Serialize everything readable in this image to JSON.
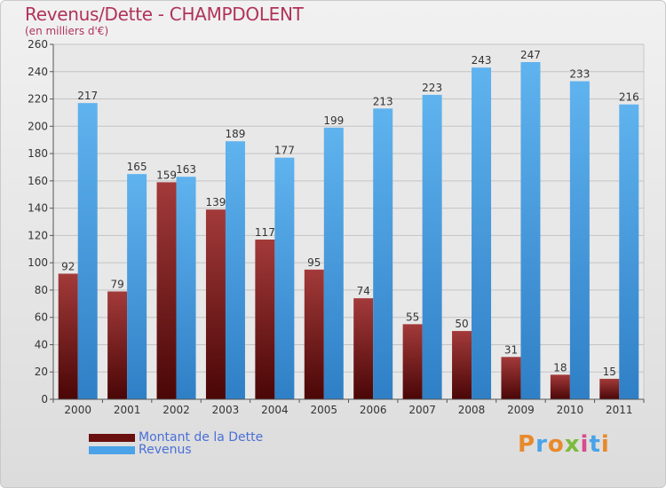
{
  "chart_data": {
    "type": "bar",
    "title": "Revenus/Dette - CHAMPDOLENT",
    "subtitle": "(en milliers d'€)",
    "categories": [
      "2000",
      "2001",
      "2002",
      "2003",
      "2004",
      "2005",
      "2006",
      "2007",
      "2008",
      "2009",
      "2010",
      "2011"
    ],
    "series": [
      {
        "name": "Montant de la Dette",
        "values": [
          92,
          79,
          159,
          139,
          117,
          95,
          74,
          55,
          50,
          31,
          18,
          15
        ],
        "color": "#7a1c1c"
      },
      {
        "name": "Revenus",
        "values": [
          217,
          165,
          163,
          189,
          177,
          199,
          213,
          223,
          243,
          247,
          233,
          216
        ],
        "color": "#4aa3e8"
      }
    ],
    "ylim": [
      0,
      260
    ],
    "yticks": [
      0,
      20,
      40,
      60,
      80,
      100,
      120,
      140,
      160,
      180,
      200,
      220,
      240,
      260
    ],
    "grid": true,
    "legend_position": "bottom-left"
  },
  "logo": {
    "text": "Proxiti",
    "colors": [
      "#e8892b",
      "#4aa3e8",
      "#e8892b",
      "#7dbb3c",
      "#d94a8c",
      "#4aa3e8",
      "#e8892b"
    ]
  }
}
